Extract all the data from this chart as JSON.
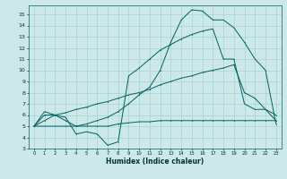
{
  "xlabel": "Humidex (Indice chaleur)",
  "background_color": "#cce8e8",
  "grid_color": "#9ecece",
  "line_color": "#006060",
  "xlim": [
    -0.5,
    23.5
  ],
  "ylim": [
    3,
    15.8
  ],
  "xticks": [
    0,
    1,
    2,
    3,
    4,
    5,
    6,
    7,
    8,
    9,
    10,
    11,
    12,
    13,
    14,
    15,
    16,
    17,
    18,
    19,
    20,
    21,
    22,
    23
  ],
  "yticks": [
    3,
    4,
    5,
    6,
    7,
    8,
    9,
    10,
    11,
    12,
    13,
    14,
    15
  ],
  "line1_x": [
    0,
    1,
    2,
    3,
    4,
    5,
    6,
    7,
    8,
    9,
    10,
    11,
    12,
    13,
    14,
    15,
    16,
    17,
    18,
    19,
    20,
    21,
    22,
    23
  ],
  "line1_y": [
    5.0,
    6.3,
    6.0,
    5.8,
    4.3,
    4.5,
    4.3,
    3.3,
    3.6,
    9.5,
    10.2,
    11.0,
    11.8,
    12.3,
    12.8,
    13.2,
    13.5,
    13.7,
    11.0,
    11.0,
    7.0,
    6.5,
    6.5,
    6.0
  ],
  "line2_x": [
    0,
    1,
    2,
    3,
    4,
    5,
    6,
    7,
    8,
    9,
    10,
    11,
    12,
    13,
    14,
    15,
    16,
    17,
    18,
    19,
    20,
    21,
    22,
    23
  ],
  "line2_y": [
    5.0,
    6.0,
    6.0,
    5.5,
    5.0,
    5.2,
    5.5,
    5.8,
    6.3,
    7.0,
    7.8,
    8.5,
    10.0,
    12.5,
    14.5,
    15.4,
    15.3,
    14.5,
    14.5,
    13.8,
    12.5,
    11.0,
    10.0,
    5.2
  ],
  "line3_x": [
    0,
    1,
    2,
    3,
    4,
    5,
    6,
    7,
    8,
    9,
    10,
    11,
    12,
    13,
    14,
    15,
    16,
    17,
    18,
    19,
    20,
    21,
    22,
    23
  ],
  "line3_y": [
    5.0,
    5.5,
    6.0,
    6.2,
    6.5,
    6.7,
    7.0,
    7.2,
    7.5,
    7.8,
    8.0,
    8.3,
    8.7,
    9.0,
    9.3,
    9.5,
    9.8,
    10.0,
    10.2,
    10.5,
    8.0,
    7.5,
    6.5,
    5.5
  ],
  "line4_x": [
    0,
    1,
    2,
    3,
    4,
    5,
    6,
    7,
    8,
    9,
    10,
    11,
    12,
    13,
    14,
    15,
    16,
    17,
    18,
    19,
    20,
    21,
    22,
    23
  ],
  "line4_y": [
    5.0,
    5.0,
    5.0,
    5.0,
    5.0,
    5.0,
    5.0,
    5.0,
    5.2,
    5.3,
    5.4,
    5.4,
    5.5,
    5.5,
    5.5,
    5.5,
    5.5,
    5.5,
    5.5,
    5.5,
    5.5,
    5.5,
    5.5,
    5.5
  ]
}
